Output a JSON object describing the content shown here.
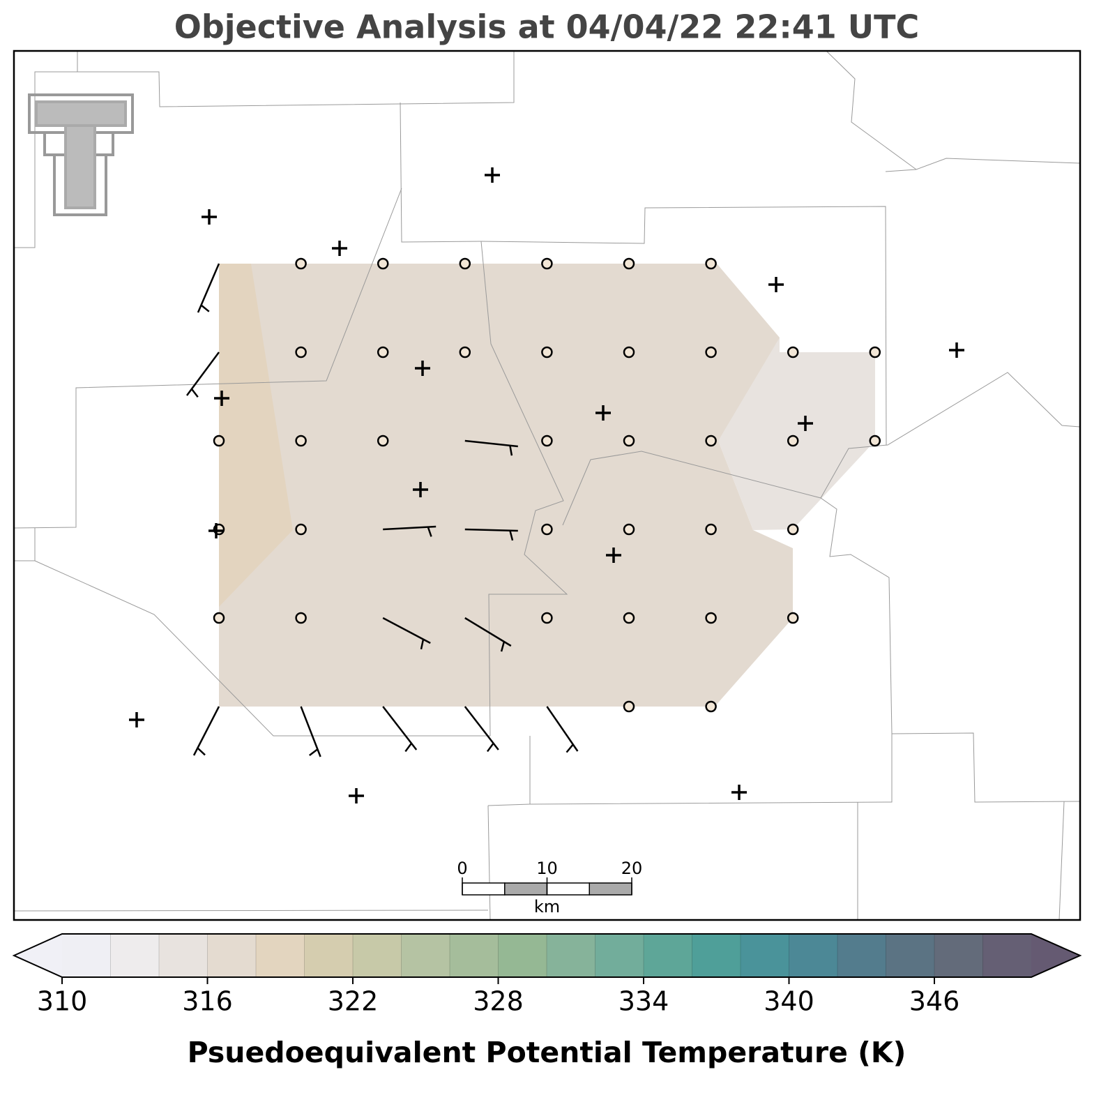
{
  "title": "Objective Analysis at 04/04/22 22:41 UTC",
  "scale_bar": {
    "ticks": [
      0,
      10,
      20
    ],
    "unit": "km"
  },
  "colorbar": {
    "label": "Psuedoequivalent Potential Temperature (K)",
    "vmin": 310,
    "vmax": 350,
    "ticks": [
      310,
      316,
      322,
      328,
      334,
      340,
      346
    ],
    "under_color": "#f0f0f6",
    "over_color": "#655a72",
    "colors": [
      "#efeff4",
      "#eeeced",
      "#e8e3df",
      "#e4dbd0",
      "#e3d5bf",
      "#d5cdaf",
      "#c7c9a8",
      "#b5c3a3",
      "#a5bd9b",
      "#95b894",
      "#86b39a",
      "#72ad9b",
      "#5ea698",
      "#4f9f99",
      "#4a939a",
      "#4c8896",
      "#537c8d",
      "#5b7383",
      "#636b7a",
      "#655f74"
    ]
  }
}
